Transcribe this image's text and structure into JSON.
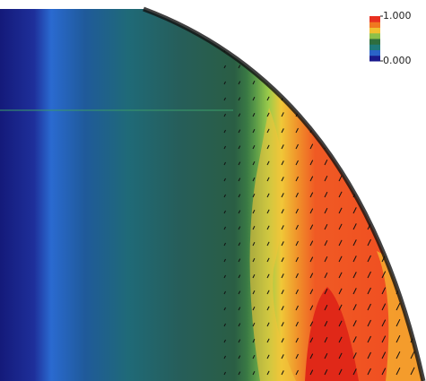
{
  "chart_data": {
    "type": "contour",
    "colorbar": {
      "lim": [
        0,
        1
      ],
      "ticks": [
        {
          "value": 1,
          "label": "1.000"
        },
        {
          "value": 0,
          "label": "0.000"
        }
      ],
      "colors": [
        "#1a1a8c",
        "#2a63c8",
        "#1f7a7a",
        "#2e6e3e",
        "#8cc04a",
        "#f0c030",
        "#f07820",
        "#e83020"
      ]
    }
  }
}
